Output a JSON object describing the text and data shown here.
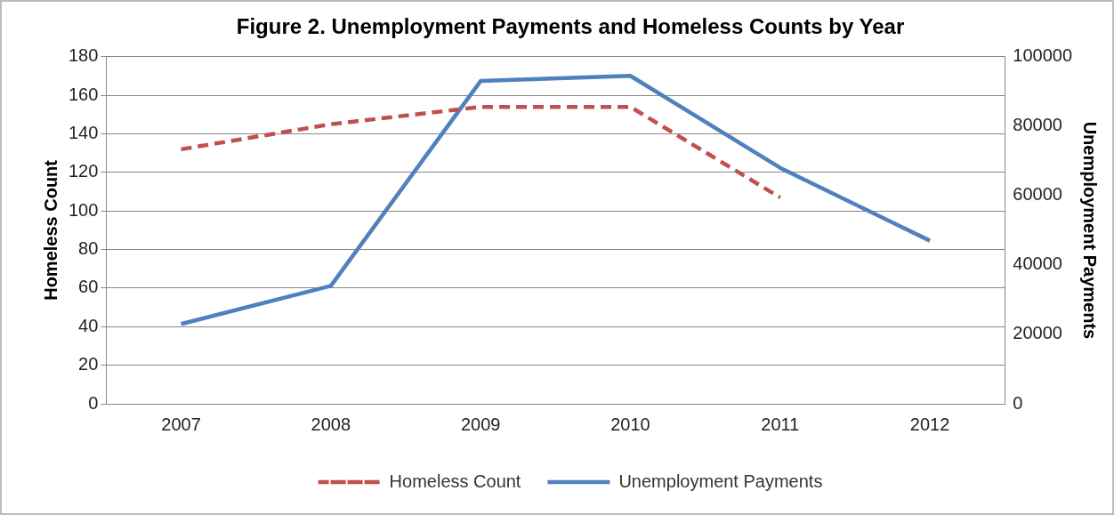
{
  "chart_data": {
    "type": "line",
    "title": "Figure 2. Unemployment Payments and Homeless Counts by Year",
    "ylabel": "Homeless Count",
    "y2label": "Unemployment Payments",
    "categories": [
      "2007",
      "2008",
      "2009",
      "2010",
      "2011",
      "2012"
    ],
    "series": [
      {
        "name": "Homeless Count",
        "color": "#c0504d",
        "line_style": "dashed",
        "values": [
          132,
          145,
          154,
          154,
          107,
          null
        ]
      },
      {
        "name": "Unemployment Payments",
        "color": "#4f81bd",
        "line_style": "solid",
        "axis": "y2",
        "values": [
          23000,
          34000,
          93000,
          94500,
          68000,
          47000
        ]
      }
    ],
    "ylim": [
      0,
      180
    ],
    "yticks": [
      0,
      20,
      40,
      60,
      80,
      100,
      120,
      140,
      160,
      180
    ],
    "y2lim": [
      0,
      100000
    ],
    "y2ticks": [
      0,
      20000,
      40000,
      60000,
      80000,
      100000
    ],
    "grid": "y",
    "legend": "bottom",
    "marker": "none"
  }
}
